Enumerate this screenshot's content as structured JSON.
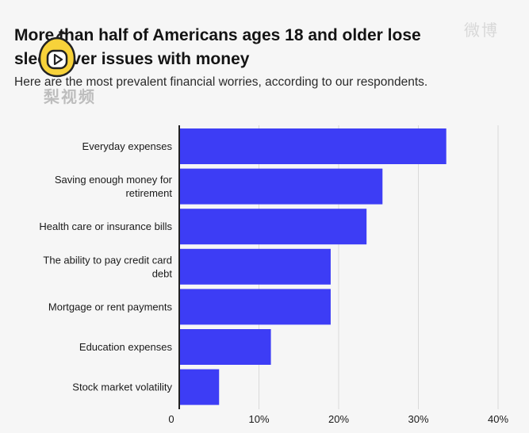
{
  "header": {
    "title_line1": "More than half of Americans ages 18 and older lose",
    "title_line2": "sleep over issues with money",
    "subtitle": "Here are the most prevalent financial worries, according to our respondents."
  },
  "watermarks": {
    "top_right": "微博",
    "bottom_left": "梨视频"
  },
  "logo": {
    "name": "play-logo"
  },
  "colors": {
    "bar": "#3d3df5",
    "grid": "#d9d9d9",
    "axis": "#222222"
  },
  "chart_data": {
    "type": "bar",
    "orientation": "horizontal",
    "title": "More than half of Americans ages 18 and older lose sleep over issues with money",
    "subtitle": "Here are the most prevalent financial worries, according to our respondents.",
    "categories": [
      [
        "Everyday expenses"
      ],
      [
        "Saving enough money for",
        "retirement"
      ],
      [
        "Health care or insurance bills"
      ],
      [
        "The ability to pay credit card",
        "debt"
      ],
      [
        "Mortgage or rent payments"
      ],
      [
        "Education expenses"
      ],
      [
        "Stock market volatility"
      ]
    ],
    "values": [
      33.5,
      25.5,
      23.5,
      19,
      19,
      11.5,
      5
    ],
    "xlim": [
      0,
      40
    ],
    "ticks": [
      0,
      10,
      20,
      30,
      40
    ],
    "tick_labels": [
      "0",
      "10%",
      "20%",
      "30%",
      "40%"
    ],
    "grid": true,
    "xlabel": "",
    "ylabel": ""
  }
}
